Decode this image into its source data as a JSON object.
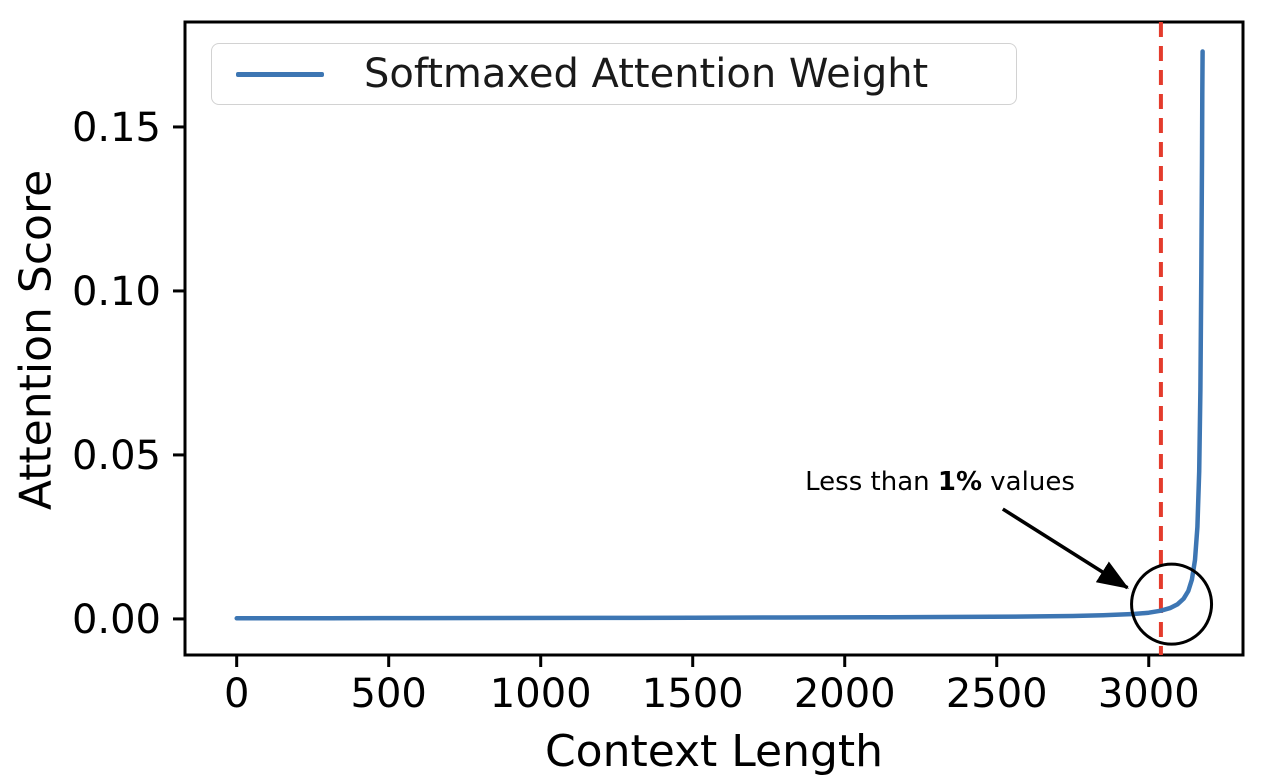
{
  "figure": {
    "background": "#ffffff",
    "legend": {
      "label": "Softmaxed Attention Weight"
    },
    "xlabel": "Context Length",
    "ylabel": "Attention Score",
    "annotation": {
      "prefix": "Less than ",
      "bold": "1%",
      "suffix": " values"
    }
  },
  "chart_data": {
    "type": "line",
    "title": "",
    "xlabel": "Context Length",
    "ylabel": "Attention Score",
    "legend": {
      "entries": [
        "Softmaxed Attention Weight"
      ],
      "position": "upper-left"
    },
    "grid": false,
    "xlim": [
      -170,
      3310
    ],
    "ylim": [
      -0.011,
      0.182
    ],
    "x_ticks": {
      "values": [
        0,
        500,
        1000,
        1500,
        2000,
        2500,
        3000
      ],
      "labels": [
        "0",
        "500",
        "1000",
        "1500",
        "2000",
        "2500",
        "3000"
      ]
    },
    "y_ticks": {
      "values": [
        0.0,
        0.05,
        0.1,
        0.15
      ],
      "labels": [
        "0.00",
        "0.05",
        "0.10",
        "0.15"
      ]
    },
    "axis_color": "#000000",
    "series": [
      {
        "name": "Softmaxed Attention Weight",
        "color": "#3d76b3",
        "line_width": 4.5,
        "points": [
          [
            0,
            0.0002
          ],
          [
            300,
            0.00022
          ],
          [
            600,
            0.00025
          ],
          [
            900,
            0.00028
          ],
          [
            1200,
            0.00032
          ],
          [
            1500,
            0.00036
          ],
          [
            1800,
            0.00042
          ],
          [
            2100,
            0.0005
          ],
          [
            2400,
            0.00062
          ],
          [
            2600,
            0.00075
          ],
          [
            2750,
            0.0009
          ],
          [
            2850,
            0.0011
          ],
          [
            2950,
            0.0015
          ],
          [
            3000,
            0.0019
          ],
          [
            3040,
            0.0025
          ],
          [
            3070,
            0.0033
          ],
          [
            3095,
            0.0045
          ],
          [
            3115,
            0.0062
          ],
          [
            3130,
            0.0085
          ],
          [
            3142,
            0.012
          ],
          [
            3152,
            0.018
          ],
          [
            3160,
            0.028
          ],
          [
            3166,
            0.045
          ],
          [
            3170,
            0.07
          ],
          [
            3173,
            0.105
          ],
          [
            3175,
            0.14
          ],
          [
            3176,
            0.16
          ],
          [
            3177,
            0.173
          ]
        ]
      }
    ],
    "vline": {
      "x": 3040,
      "color": "#e43b2c",
      "dash": [
        15,
        9
      ],
      "line_width": 4
    },
    "annotations": [
      {
        "type": "circle",
        "x": 3075,
        "y": 0.0045,
        "radius_px": 40,
        "color": "#000000",
        "line_width": 3
      },
      {
        "type": "arrow",
        "from": [
          2520,
          0.0335
        ],
        "to": [
          2930,
          0.0095
        ],
        "color": "#000000",
        "line_width": 3.5
      },
      {
        "type": "text",
        "x": 2313,
        "y": 0.047,
        "text": "Less than 1% values",
        "bold_segment": "1%"
      }
    ]
  }
}
